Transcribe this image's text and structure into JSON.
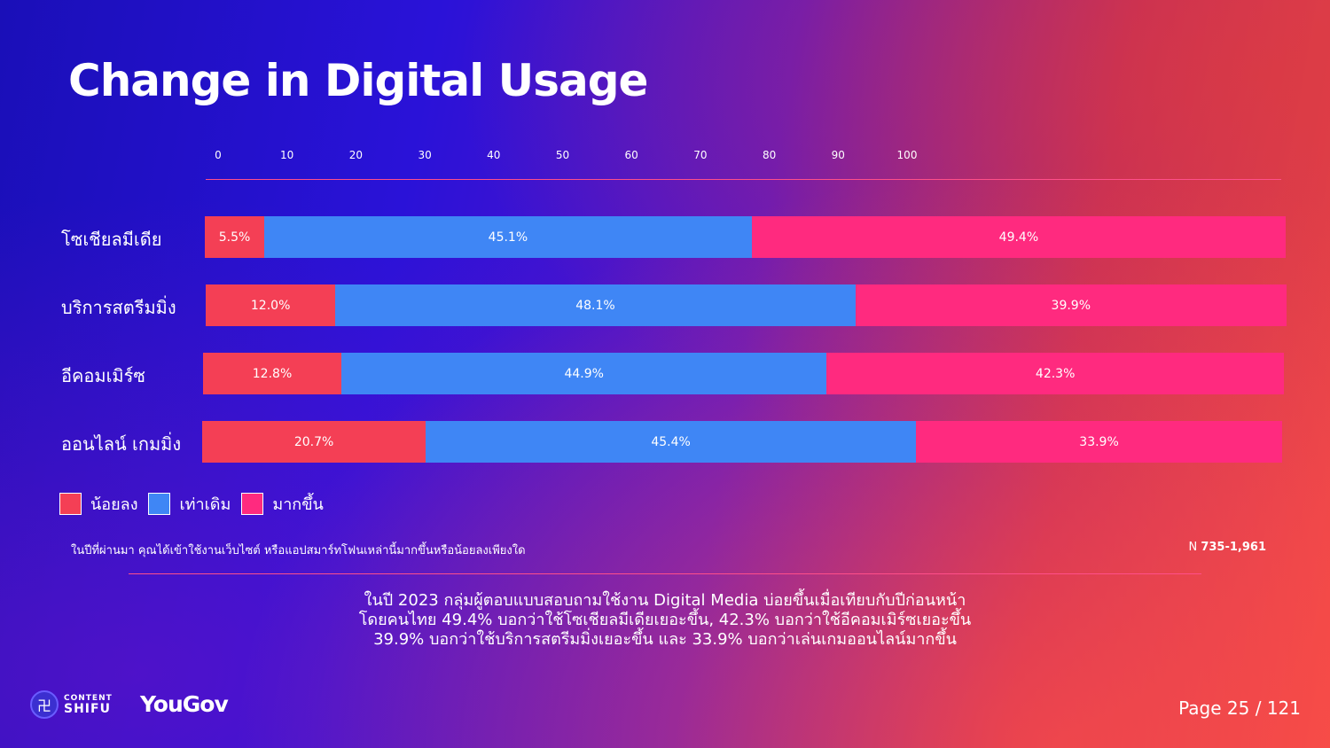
{
  "title": "Change in Digital Usage",
  "chart_data": {
    "type": "bar",
    "orientation": "horizontal",
    "stacked": true,
    "categories": [
      "โซเชียลมีเดีย",
      "บริการสตรีมมิ่ง",
      "อีคอมเมิร์ซ",
      "ออนไลน์ เกมมิ่ง"
    ],
    "axis_ticks": [
      "0",
      "10",
      "20",
      "30",
      "40",
      "50",
      "60",
      "70",
      "80",
      "90",
      "100"
    ],
    "xlim": [
      0,
      100
    ],
    "series": [
      {
        "name": "น้อยลง",
        "color": "#f43f55",
        "values": [
          5.5,
          12.0,
          12.8,
          20.7
        ],
        "labels": [
          "5.5%",
          "12.0%",
          "12.8%",
          "20.7%"
        ]
      },
      {
        "name": "เท่าเดิม",
        "color": "#3f86f5",
        "values": [
          45.1,
          48.1,
          44.9,
          45.4
        ],
        "labels": [
          "45.1%",
          "48.1%",
          "44.9%",
          "45.4%"
        ]
      },
      {
        "name": "มากขึ้น",
        "color": "#ff2a7f",
        "values": [
          49.4,
          39.9,
          42.3,
          33.9
        ],
        "labels": [
          "49.4%",
          "39.9%",
          "42.3%",
          "33.9%"
        ]
      }
    ],
    "legend": "bottom-left",
    "grid": false
  },
  "question": "ในปีที่ผ่านมา คุณได้เข้าใช้งานเว็บไซต์ หรือแอปสมาร์ทโฟนเหล่านี้มากขึ้นหรือน้อยลงเพียงใด",
  "sample_prefix": "N",
  "sample_value": "735-1,961",
  "summary": [
    "ในปี 2023 กลุ่มผู้ตอบแบบสอบถามใช้งาน Digital Media บ่อยขึ้นเมื่อเทียบกับปีก่อนหน้า",
    "โดยคนไทย 49.4% บอกว่าใช้โซเชียลมีเดียเยอะขึ้น, 42.3% บอกว่าใช้อีคอมเมิร์ซเยอะขึ้น",
    "39.9% บอกว่าใช้บริการสตรีมมิ่งเยอะขึ้น และ 33.9% บอกว่าเล่นเกมออนไลน์มากขึ้น"
  ],
  "logos": {
    "content_shifu_top": "CONTENT",
    "content_shifu_bottom": "SHIFU",
    "yougov": "YouGov"
  },
  "page": "Page 25 / 121"
}
